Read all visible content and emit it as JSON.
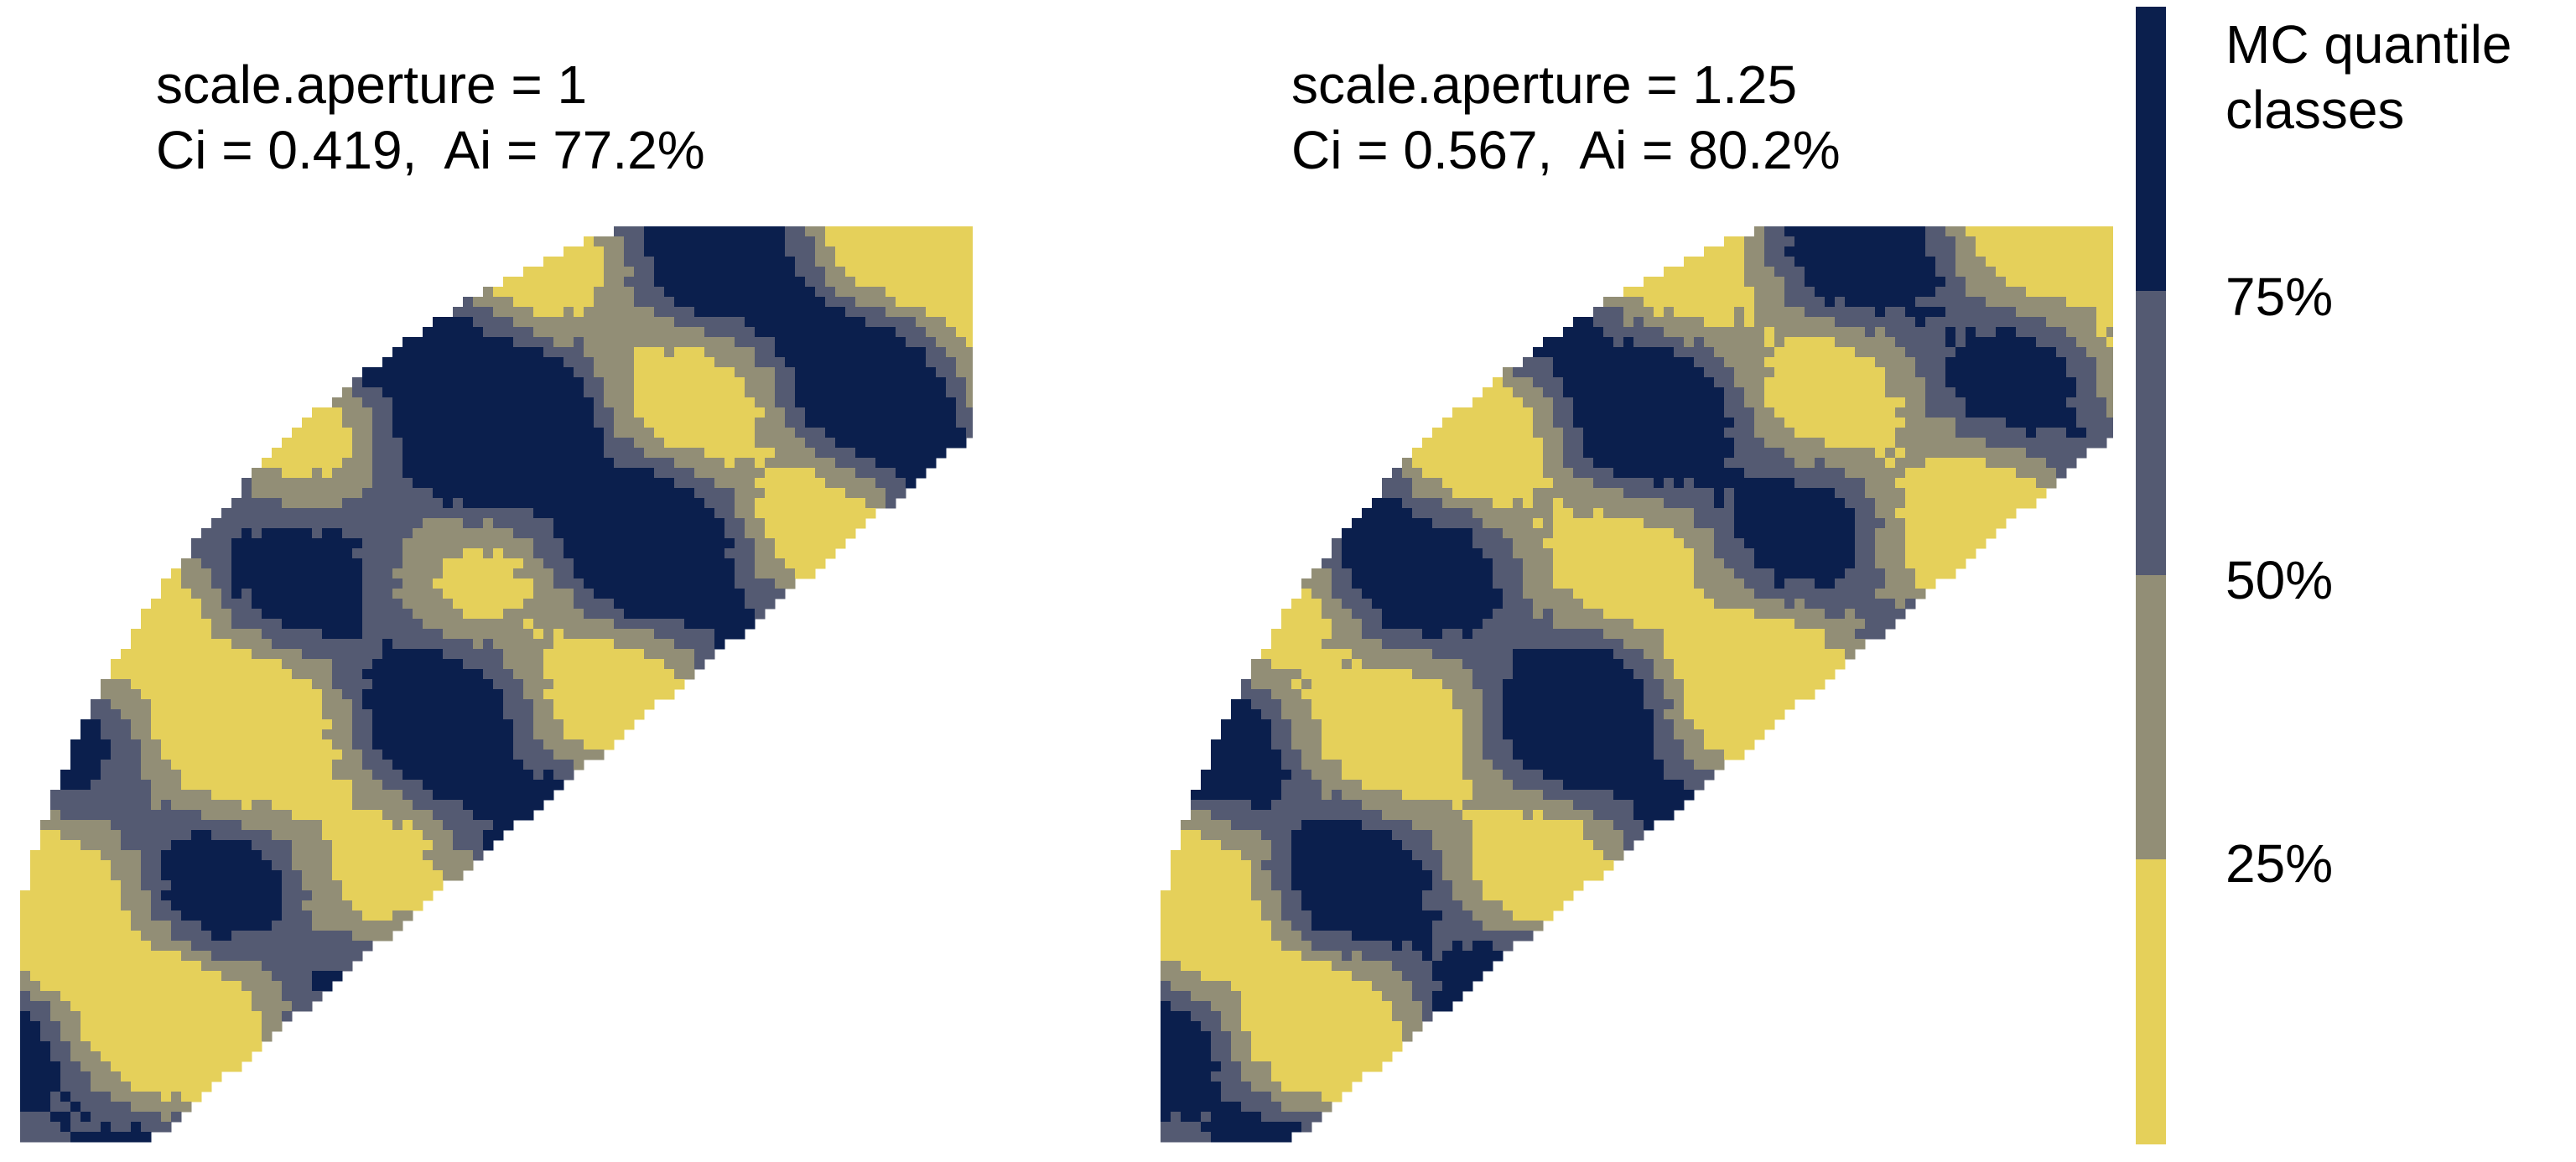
{
  "chart_data": [
    {
      "type": "heatmap",
      "title_lines": [
        "scale.aperture = 1",
        "Ci = 0.419,  Ai = 77.2%"
      ],
      "scale_aperture": 1,
      "Ci": 0.419,
      "Ai_percent": 77.2
    },
    {
      "type": "heatmap",
      "title_lines": [
        "scale.aperture = 1.25",
        "Ci = 0.567,  Ai = 80.2%"
      ],
      "scale_aperture": 1.25,
      "Ci": 0.567,
      "Ai_percent": 80.2
    }
  ],
  "legend": {
    "title_lines": [
      "MC quantile",
      "classes"
    ],
    "ticks": [
      "75%",
      "50%",
      "25%"
    ],
    "class_colors": [
      "#e5d05a",
      "#928e76",
      "#545a72",
      "#0b1f4d"
    ],
    "placement": "right"
  }
}
